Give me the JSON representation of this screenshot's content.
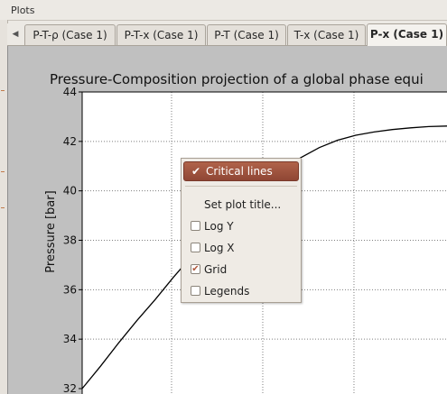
{
  "panel": {
    "title": "Plots"
  },
  "tabs": [
    {
      "label": "P-T-ρ (Case 1)",
      "active": false
    },
    {
      "label": "P-T-x (Case 1)",
      "active": false
    },
    {
      "label": "P-T (Case 1)",
      "active": false
    },
    {
      "label": "T-x (Case 1)",
      "active": false
    },
    {
      "label": "P-x (Case 1)",
      "active": true
    }
  ],
  "tab_scroll_icon": "triangle-left-icon",
  "chart_data": {
    "type": "line",
    "title": "Pressure-Composition projection of a global phase equi",
    "xlabel": "",
    "ylabel": "Pressure [bar]",
    "ylim": [
      32,
      44
    ],
    "yticks": [
      "44",
      "42",
      "40",
      "38",
      "36",
      "34",
      "32"
    ],
    "grid": true,
    "series": [
      {
        "x": [
          0.0,
          0.05,
          0.1,
          0.15,
          0.2,
          0.25,
          0.3,
          0.35,
          0.4,
          0.45,
          0.5,
          0.55,
          0.6,
          0.65,
          0.7,
          0.75,
          0.8,
          0.85,
          0.9,
          0.95,
          1.0
        ],
        "y": [
          32.0,
          32.9,
          33.85,
          34.75,
          35.6,
          36.5,
          37.35,
          38.15,
          38.9,
          39.6,
          40.25,
          40.85,
          41.35,
          41.75,
          42.05,
          42.25,
          42.38,
          42.48,
          42.55,
          42.6,
          42.62
        ]
      }
    ],
    "colors": {
      "line": "#000000",
      "grid": "#7f7f7f",
      "plot_bg": "#ffffff",
      "frame_bg": "#c0c0c0"
    }
  },
  "context_menu": {
    "items": [
      {
        "label": "Critical lines",
        "type": "check",
        "checked": true,
        "highlighted": true
      },
      {
        "label": "Set plot title...",
        "type": "action"
      },
      {
        "label": "Log Y",
        "type": "checkbox",
        "checked": false
      },
      {
        "label": "Log X",
        "type": "checkbox",
        "checked": false
      },
      {
        "label": "Grid",
        "type": "checkbox",
        "checked": true
      },
      {
        "label": "Legends",
        "type": "checkbox",
        "checked": false
      }
    ],
    "colors": {
      "highlight": "#9c4f3b",
      "background": "#efebe5"
    }
  }
}
